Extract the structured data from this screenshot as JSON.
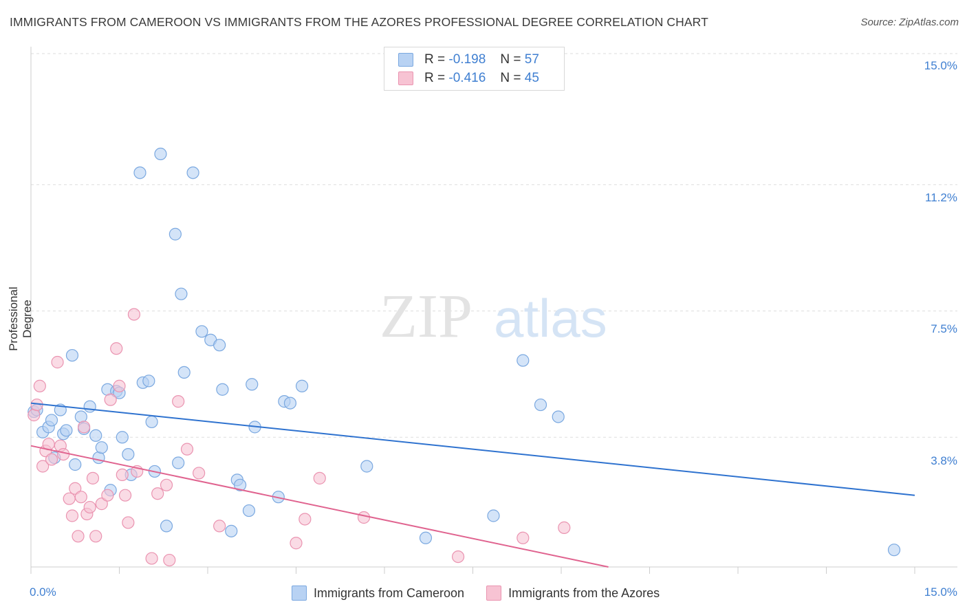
{
  "title": "IMMIGRANTS FROM CAMEROON VS IMMIGRANTS FROM THE AZORES PROFESSIONAL DEGREE CORRELATION CHART",
  "source": "Source: ZipAtlas.com",
  "watermark": {
    "zip": "ZIP",
    "atlas": "atlas"
  },
  "colors": {
    "blue_fill": "#b8d2f3",
    "blue_stroke": "#7aa8e0",
    "blue_line": "#2e72cf",
    "pink_fill": "#f7c3d3",
    "pink_stroke": "#ea93b0",
    "pink_line": "#e0638f",
    "tick_text": "#3f7fd1",
    "grid": "#dddddd"
  },
  "legend_top": [
    {
      "r_label": "R =",
      "r_value": "-0.198",
      "n_label": "N =",
      "n_value": "57"
    },
    {
      "r_label": "R =",
      "r_value": "-0.416",
      "n_label": "N =",
      "n_value": "45"
    }
  ],
  "chart_data": {
    "type": "scatter",
    "xlabel": "",
    "ylabel": "Professional Degree",
    "xlim": [
      0,
      15
    ],
    "ylim": [
      0,
      15.5
    ],
    "x_tick_labels": {
      "left": "0.0%",
      "right": "15.0%"
    },
    "y_ticks": [
      {
        "value": 15.0,
        "label": "15.0%"
      },
      {
        "value": 11.2,
        "label": "11.2%"
      },
      {
        "value": 7.5,
        "label": "7.5%"
      },
      {
        "value": 3.8,
        "label": "3.8%"
      }
    ],
    "grid": true,
    "legend_position": "bottom",
    "series": [
      {
        "name": "Immigrants from Cameroon",
        "trend": {
          "x": [
            0,
            15
          ],
          "y": [
            4.8,
            2.1
          ]
        },
        "points": [
          [
            0.05,
            4.55
          ],
          [
            0.1,
            4.6
          ],
          [
            0.2,
            3.95
          ],
          [
            0.3,
            4.1
          ],
          [
            0.35,
            4.3
          ],
          [
            0.4,
            3.2
          ],
          [
            0.5,
            4.6
          ],
          [
            0.55,
            3.9
          ],
          [
            0.6,
            4.0
          ],
          [
            0.7,
            6.2
          ],
          [
            0.75,
            3.0
          ],
          [
            0.85,
            4.4
          ],
          [
            0.9,
            4.05
          ],
          [
            1.0,
            4.7
          ],
          [
            1.1,
            3.85
          ],
          [
            1.15,
            3.2
          ],
          [
            1.2,
            3.5
          ],
          [
            1.3,
            5.2
          ],
          [
            1.35,
            2.25
          ],
          [
            1.45,
            5.15
          ],
          [
            1.5,
            5.1
          ],
          [
            1.55,
            3.8
          ],
          [
            1.65,
            3.3
          ],
          [
            1.7,
            2.7
          ],
          [
            1.85,
            11.55
          ],
          [
            1.9,
            5.4
          ],
          [
            2.0,
            5.45
          ],
          [
            2.05,
            4.25
          ],
          [
            2.1,
            2.8
          ],
          [
            2.2,
            12.1
          ],
          [
            2.3,
            1.2
          ],
          [
            2.45,
            9.75
          ],
          [
            2.5,
            3.05
          ],
          [
            2.55,
            8.0
          ],
          [
            2.6,
            5.7
          ],
          [
            2.75,
            11.55
          ],
          [
            2.9,
            6.9
          ],
          [
            3.05,
            6.65
          ],
          [
            3.2,
            6.5
          ],
          [
            3.25,
            5.2
          ],
          [
            3.4,
            1.05
          ],
          [
            3.5,
            2.55
          ],
          [
            3.55,
            2.4
          ],
          [
            3.7,
            1.65
          ],
          [
            3.75,
            5.35
          ],
          [
            3.8,
            4.1
          ],
          [
            4.2,
            2.05
          ],
          [
            4.3,
            4.85
          ],
          [
            4.4,
            4.8
          ],
          [
            4.6,
            5.3
          ],
          [
            5.7,
            2.95
          ],
          [
            6.7,
            0.85
          ],
          [
            7.85,
            1.5
          ],
          [
            8.35,
            6.05
          ],
          [
            8.65,
            4.75
          ],
          [
            8.95,
            4.4
          ],
          [
            14.65,
            0.5
          ]
        ]
      },
      {
        "name": "Immigrants from the Azores",
        "trend": {
          "x": [
            0,
            9.8
          ],
          "y": [
            3.55,
            0.0
          ]
        },
        "points": [
          [
            0.05,
            4.45
          ],
          [
            0.1,
            4.75
          ],
          [
            0.15,
            5.3
          ],
          [
            0.2,
            2.95
          ],
          [
            0.25,
            3.4
          ],
          [
            0.3,
            3.6
          ],
          [
            0.35,
            3.15
          ],
          [
            0.45,
            6.0
          ],
          [
            0.5,
            3.55
          ],
          [
            0.55,
            3.3
          ],
          [
            0.65,
            2.0
          ],
          [
            0.7,
            1.5
          ],
          [
            0.75,
            2.3
          ],
          [
            0.8,
            0.9
          ],
          [
            0.85,
            2.05
          ],
          [
            0.9,
            4.1
          ],
          [
            0.95,
            1.55
          ],
          [
            1.0,
            1.75
          ],
          [
            1.05,
            2.6
          ],
          [
            1.1,
            0.9
          ],
          [
            1.2,
            1.85
          ],
          [
            1.3,
            2.1
          ],
          [
            1.35,
            4.9
          ],
          [
            1.45,
            6.4
          ],
          [
            1.5,
            5.3
          ],
          [
            1.55,
            2.7
          ],
          [
            1.6,
            2.1
          ],
          [
            1.65,
            1.3
          ],
          [
            1.75,
            7.4
          ],
          [
            1.8,
            2.8
          ],
          [
            2.05,
            0.25
          ],
          [
            2.15,
            2.15
          ],
          [
            2.3,
            2.4
          ],
          [
            2.35,
            0.2
          ],
          [
            2.5,
            4.85
          ],
          [
            2.65,
            3.45
          ],
          [
            2.85,
            2.75
          ],
          [
            3.2,
            1.2
          ],
          [
            4.5,
            0.7
          ],
          [
            4.65,
            1.4
          ],
          [
            4.9,
            2.6
          ],
          [
            5.65,
            1.45
          ],
          [
            7.25,
            0.3
          ],
          [
            8.35,
            0.85
          ],
          [
            9.05,
            1.15
          ]
        ]
      }
    ]
  }
}
